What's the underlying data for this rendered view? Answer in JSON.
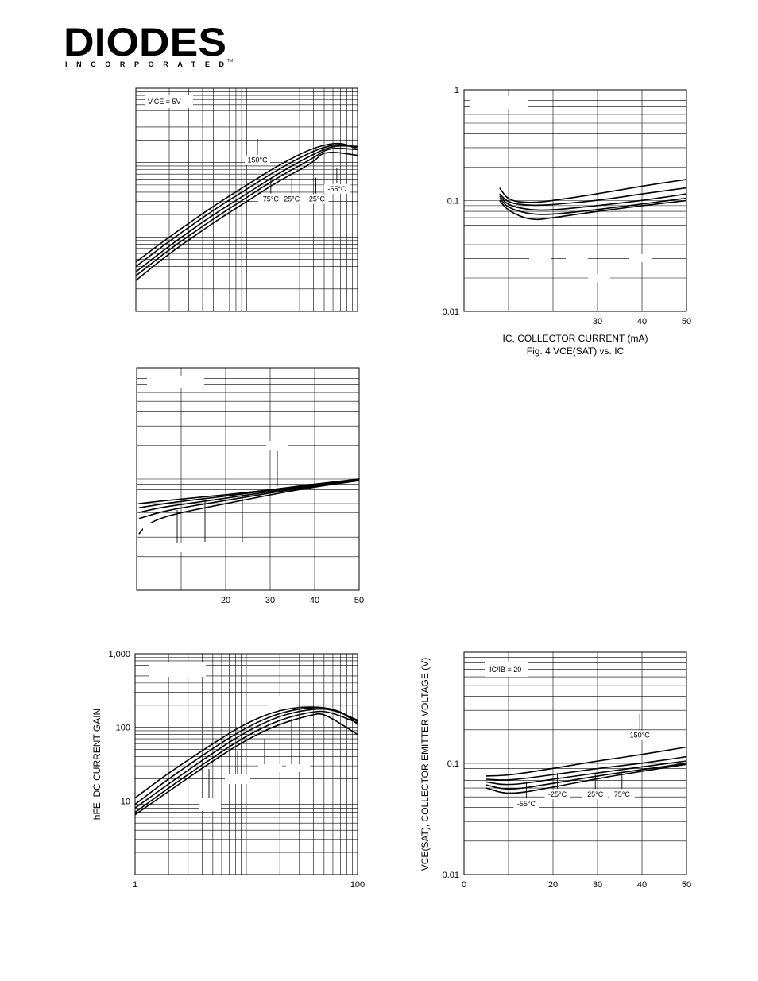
{
  "logo": {
    "word": "DIODES",
    "sub": "INCORPORATED",
    "tm": "TM"
  },
  "chart_data": [
    {
      "id": "c1",
      "type": "line",
      "title": "",
      "x_scale": "log",
      "xlim": [
        1,
        100
      ],
      "y_scale": "log",
      "ylim": [
        1,
        1000
      ],
      "x_ticks": [],
      "y_ticks": [],
      "box": "V CE = 5V",
      "series": [
        {
          "x": [
            1,
            2,
            5,
            10,
            20,
            40,
            70,
            100
          ],
          "y": [
            4.6,
            10,
            26,
            50,
            95,
            160,
            190,
            150
          ]
        },
        {
          "x": [
            1,
            2,
            5,
            10,
            20,
            40,
            65,
            100
          ],
          "y": [
            4.0,
            8.8,
            23,
            44,
            84,
            145,
            180,
            160
          ]
        },
        {
          "x": [
            1,
            2,
            5,
            10,
            20,
            40,
            60,
            100
          ],
          "y": [
            3.4,
            7.6,
            20,
            38,
            74,
            130,
            170,
            165
          ]
        },
        {
          "x": [
            1,
            2,
            5,
            10,
            20,
            40,
            55,
            100
          ],
          "y": [
            3.0,
            6.8,
            17.5,
            34,
            66,
            115,
            160,
            150
          ]
        },
        {
          "x": [
            1,
            2,
            5,
            10,
            20,
            40,
            50,
            100
          ],
          "y": [
            2.6,
            6.0,
            15.5,
            30,
            58,
            100,
            145,
            125
          ]
        }
      ],
      "annotations": [
        {
          "text": "150°C",
          "x": 12.5,
          "y": 100
        },
        {
          "text": "75°C",
          "x": 16.5,
          "y": 30
        },
        {
          "text": "25°C",
          "x": 25.5,
          "y": 30
        },
        {
          "text": "-25°C",
          "x": 42,
          "y": 30
        },
        {
          "text": "-55°C",
          "x": 65,
          "y": 41
        }
      ]
    },
    {
      "id": "c2",
      "type": "line",
      "title": "",
      "x_scale": "linear",
      "xlim": [
        0,
        50
      ],
      "y_scale": "log",
      "ylim": [
        0.01,
        1
      ],
      "x_ticks": [
        "30",
        "40",
        "50"
      ],
      "x_tick_values": [
        30,
        40,
        50
      ],
      "y_ticks": [
        "1",
        "0.1",
        "0.01"
      ],
      "y_tick_values": [
        1,
        0.1,
        0.01
      ],
      "xlabel": "IC, COLLECTOR CURRENT (mA)",
      "caption": "Fig. 4  VCE(SAT) vs. IC",
      "series": [
        {
          "x": [
            8,
            10,
            15,
            20,
            30,
            40,
            50
          ],
          "y": [
            0.13,
            0.1,
            0.095,
            0.1,
            0.115,
            0.135,
            0.155
          ]
        },
        {
          "x": [
            8,
            10,
            15,
            20,
            30,
            40,
            50
          ],
          "y": [
            0.115,
            0.095,
            0.09,
            0.092,
            0.1,
            0.115,
            0.13
          ]
        },
        {
          "x": [
            8,
            10,
            15,
            20,
            30,
            40,
            50
          ],
          "y": [
            0.11,
            0.09,
            0.082,
            0.082,
            0.09,
            0.1,
            0.115
          ]
        },
        {
          "x": [
            8,
            10,
            15,
            20,
            30,
            40,
            50
          ],
          "y": [
            0.105,
            0.085,
            0.075,
            0.075,
            0.083,
            0.093,
            0.105
          ]
        },
        {
          "x": [
            8,
            10,
            15,
            20,
            30,
            40,
            50
          ],
          "y": [
            0.1,
            0.08,
            0.066,
            0.07,
            0.08,
            0.09,
            0.1
          ]
        }
      ]
    },
    {
      "id": "c3",
      "type": "line",
      "title": "",
      "x_scale": "linear",
      "xlim": [
        0,
        50
      ],
      "y_scale": "log",
      "ylim": [
        0.1,
        10
      ],
      "x_ticks": [
        "20",
        "30",
        "40",
        "50"
      ],
      "x_tick_values": [
        20,
        30,
        40,
        50
      ],
      "y_ticks": [],
      "series": [
        {
          "x": [
            0.5,
            5,
            10,
            20,
            30,
            40,
            50
          ],
          "y": [
            0.6,
            0.63,
            0.66,
            0.72,
            0.8,
            0.9,
            1.0
          ]
        },
        {
          "x": [
            0.5,
            5,
            10,
            20,
            30,
            40,
            50
          ],
          "y": [
            0.55,
            0.59,
            0.63,
            0.7,
            0.79,
            0.89,
            1.0
          ]
        },
        {
          "x": [
            0.5,
            5,
            10,
            20,
            30,
            40,
            50
          ],
          "y": [
            0.5,
            0.55,
            0.59,
            0.67,
            0.77,
            0.88,
            0.99
          ]
        },
        {
          "x": [
            0.5,
            5,
            10,
            20,
            30,
            40,
            50
          ],
          "y": [
            0.44,
            0.5,
            0.55,
            0.64,
            0.75,
            0.86,
            0.98
          ]
        },
        {
          "x": [
            0.5,
            2,
            5,
            10,
            20,
            30,
            40,
            50
          ],
          "y": [
            0.32,
            0.38,
            0.44,
            0.5,
            0.6,
            0.72,
            0.85,
            0.97
          ]
        }
      ]
    },
    {
      "id": "c5",
      "type": "line",
      "title": "",
      "x_scale": "log",
      "xlim": [
        1,
        100
      ],
      "y_scale": "log",
      "ylim": [
        1,
        1000
      ],
      "x_ticks": [
        "1",
        "100"
      ],
      "x_tick_values": [
        1,
        100
      ],
      "y_ticks": [
        "1,000",
        "100",
        "10"
      ],
      "y_tick_values": [
        1000,
        100,
        10
      ],
      "ylabel": "hFE, DC CURRENT GAIN",
      "series": [
        {
          "x": [
            1,
            2,
            5,
            10,
            20,
            40,
            70,
            100
          ],
          "y": [
            11,
            24,
            60,
            115,
            175,
            195,
            170,
            110
          ]
        },
        {
          "x": [
            1,
            2,
            5,
            10,
            20,
            40,
            65,
            100
          ],
          "y": [
            9,
            20,
            52,
            100,
            160,
            190,
            175,
            120
          ]
        },
        {
          "x": [
            1,
            2,
            5,
            10,
            20,
            40,
            60,
            100
          ],
          "y": [
            8,
            17,
            45,
            88,
            145,
            180,
            175,
            125
          ]
        },
        {
          "x": [
            1,
            2,
            5,
            10,
            20,
            40,
            55,
            100
          ],
          "y": [
            7,
            15,
            39,
            77,
            128,
            165,
            165,
            115
          ]
        },
        {
          "x": [
            1,
            2,
            5,
            10,
            20,
            40,
            50,
            100
          ],
          "y": [
            6.5,
            13.5,
            35,
            68,
            112,
            150,
            155,
            80
          ]
        }
      ]
    },
    {
      "id": "c6",
      "type": "line",
      "title": "",
      "x_scale": "linear",
      "xlim": [
        0,
        50
      ],
      "y_scale": "log",
      "ylim": [
        0.01,
        1
      ],
      "x_ticks": [
        "0",
        "20",
        "30",
        "40",
        "50"
      ],
      "x_tick_values": [
        0,
        20,
        30,
        40,
        50
      ],
      "y_ticks": [
        "0.1",
        "0.01"
      ],
      "y_tick_values": [
        0.1,
        0.01
      ],
      "ylabel": "VCE(SAT), COLLECTOR EMITTER VOLTAGE (V)",
      "box": "IC/IB = 20",
      "series": [
        {
          "x": [
            5,
            10,
            20,
            30,
            40,
            50
          ],
          "y": [
            0.077,
            0.078,
            0.09,
            0.105,
            0.12,
            0.14
          ]
        },
        {
          "x": [
            5,
            10,
            20,
            30,
            40,
            50
          ],
          "y": [
            0.072,
            0.07,
            0.079,
            0.09,
            0.1,
            0.115
          ]
        },
        {
          "x": [
            5,
            10,
            20,
            30,
            40,
            50
          ],
          "y": [
            0.068,
            0.063,
            0.072,
            0.082,
            0.093,
            0.105
          ]
        },
        {
          "x": [
            5,
            10,
            20,
            30,
            40,
            50
          ],
          "y": [
            0.064,
            0.057,
            0.066,
            0.077,
            0.088,
            0.1
          ]
        },
        {
          "x": [
            5,
            10,
            20,
            30,
            40,
            50
          ],
          "y": [
            0.06,
            0.052,
            0.061,
            0.073,
            0.085,
            0.098
          ]
        }
      ],
      "annotations": [
        {
          "text": "150°C",
          "x": 39.5,
          "y": 0.17
        },
        {
          "text": "-55°C",
          "x": 14,
          "y": 0.041
        },
        {
          "text": "-25°C",
          "x": 21,
          "y": 0.05
        },
        {
          "text": "25°C",
          "x": 29.5,
          "y": 0.05
        },
        {
          "text": "75°C",
          "x": 35.5,
          "y": 0.05
        }
      ]
    }
  ]
}
